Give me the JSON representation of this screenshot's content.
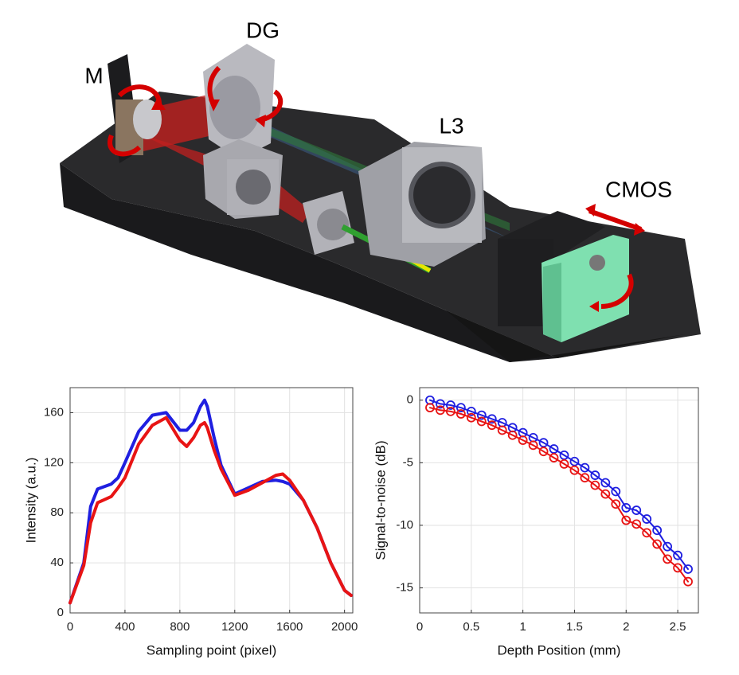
{
  "diagram": {
    "labels": [
      "M",
      "DG",
      "L3",
      "CMOS"
    ]
  },
  "chart_data": [
    {
      "type": "line",
      "xlabel": "Sampling point (pixel)",
      "ylabel": "Intensity (a.u.)",
      "x": [
        0,
        100,
        150,
        200,
        300,
        350,
        400,
        500,
        600,
        700,
        800,
        850,
        900,
        950,
        980,
        1000,
        1050,
        1100,
        1200,
        1300,
        1400,
        1500,
        1550,
        1600,
        1700,
        1800,
        1900,
        2000,
        2048
      ],
      "series": [
        {
          "color": "#1f1fe0",
          "values": [
            8,
            40,
            85,
            99,
            103,
            108,
            120,
            145,
            158,
            160,
            146,
            146,
            152,
            165,
            170,
            165,
            140,
            118,
            95,
            100,
            105,
            106,
            105,
            103,
            90,
            68,
            40,
            18,
            14
          ]
        },
        {
          "color": "#e81414",
          "values": [
            8,
            38,
            72,
            88,
            93,
            100,
            108,
            135,
            150,
            156,
            138,
            133,
            140,
            150,
            152,
            148,
            130,
            115,
            94,
            98,
            104,
            110,
            111,
            106,
            90,
            68,
            40,
            18,
            14
          ]
        }
      ],
      "xlim": [
        0,
        2060
      ],
      "xticks": [
        0,
        400,
        800,
        1200,
        1600,
        2000
      ],
      "ylim": [
        0,
        180
      ],
      "yticks": [
        0,
        40,
        80,
        120,
        160
      ],
      "grid": true,
      "markers": false
    },
    {
      "type": "line",
      "xlabel": "Depth Position (mm)",
      "ylabel": "Signal-to-noise (dB)",
      "x": [
        0.1,
        0.2,
        0.3,
        0.4,
        0.5,
        0.6,
        0.7,
        0.8,
        0.9,
        1.0,
        1.1,
        1.2,
        1.3,
        1.4,
        1.5,
        1.6,
        1.7,
        1.8,
        1.9,
        2.0,
        2.1,
        2.2,
        2.3,
        2.4,
        2.5,
        2.6
      ],
      "series": [
        {
          "color": "#1f1fe0",
          "values": [
            0,
            -0.3,
            -0.4,
            -0.6,
            -0.9,
            -1.2,
            -1.5,
            -1.8,
            -2.2,
            -2.6,
            -3.0,
            -3.4,
            -3.9,
            -4.4,
            -4.9,
            -5.4,
            -6.0,
            -6.6,
            -7.3,
            -8.6,
            -8.8,
            -9.5,
            -10.4,
            -11.7,
            -12.4,
            -13.5
          ]
        },
        {
          "color": "#e81414",
          "values": [
            -0.6,
            -0.8,
            -0.9,
            -1.1,
            -1.4,
            -1.7,
            -2.0,
            -2.4,
            -2.8,
            -3.2,
            -3.6,
            -4.1,
            -4.6,
            -5.1,
            -5.6,
            -6.2,
            -6.8,
            -7.5,
            -8.3,
            -9.6,
            -9.9,
            -10.6,
            -11.5,
            -12.7,
            -13.4,
            -14.5
          ]
        }
      ],
      "xlim": [
        0,
        2.7
      ],
      "xticks": [
        0,
        0.5,
        1,
        1.5,
        2,
        2.5
      ],
      "ylim": [
        -17,
        1
      ],
      "yticks": [
        0,
        -5,
        -10,
        -15
      ],
      "grid": true,
      "markers": true
    }
  ]
}
